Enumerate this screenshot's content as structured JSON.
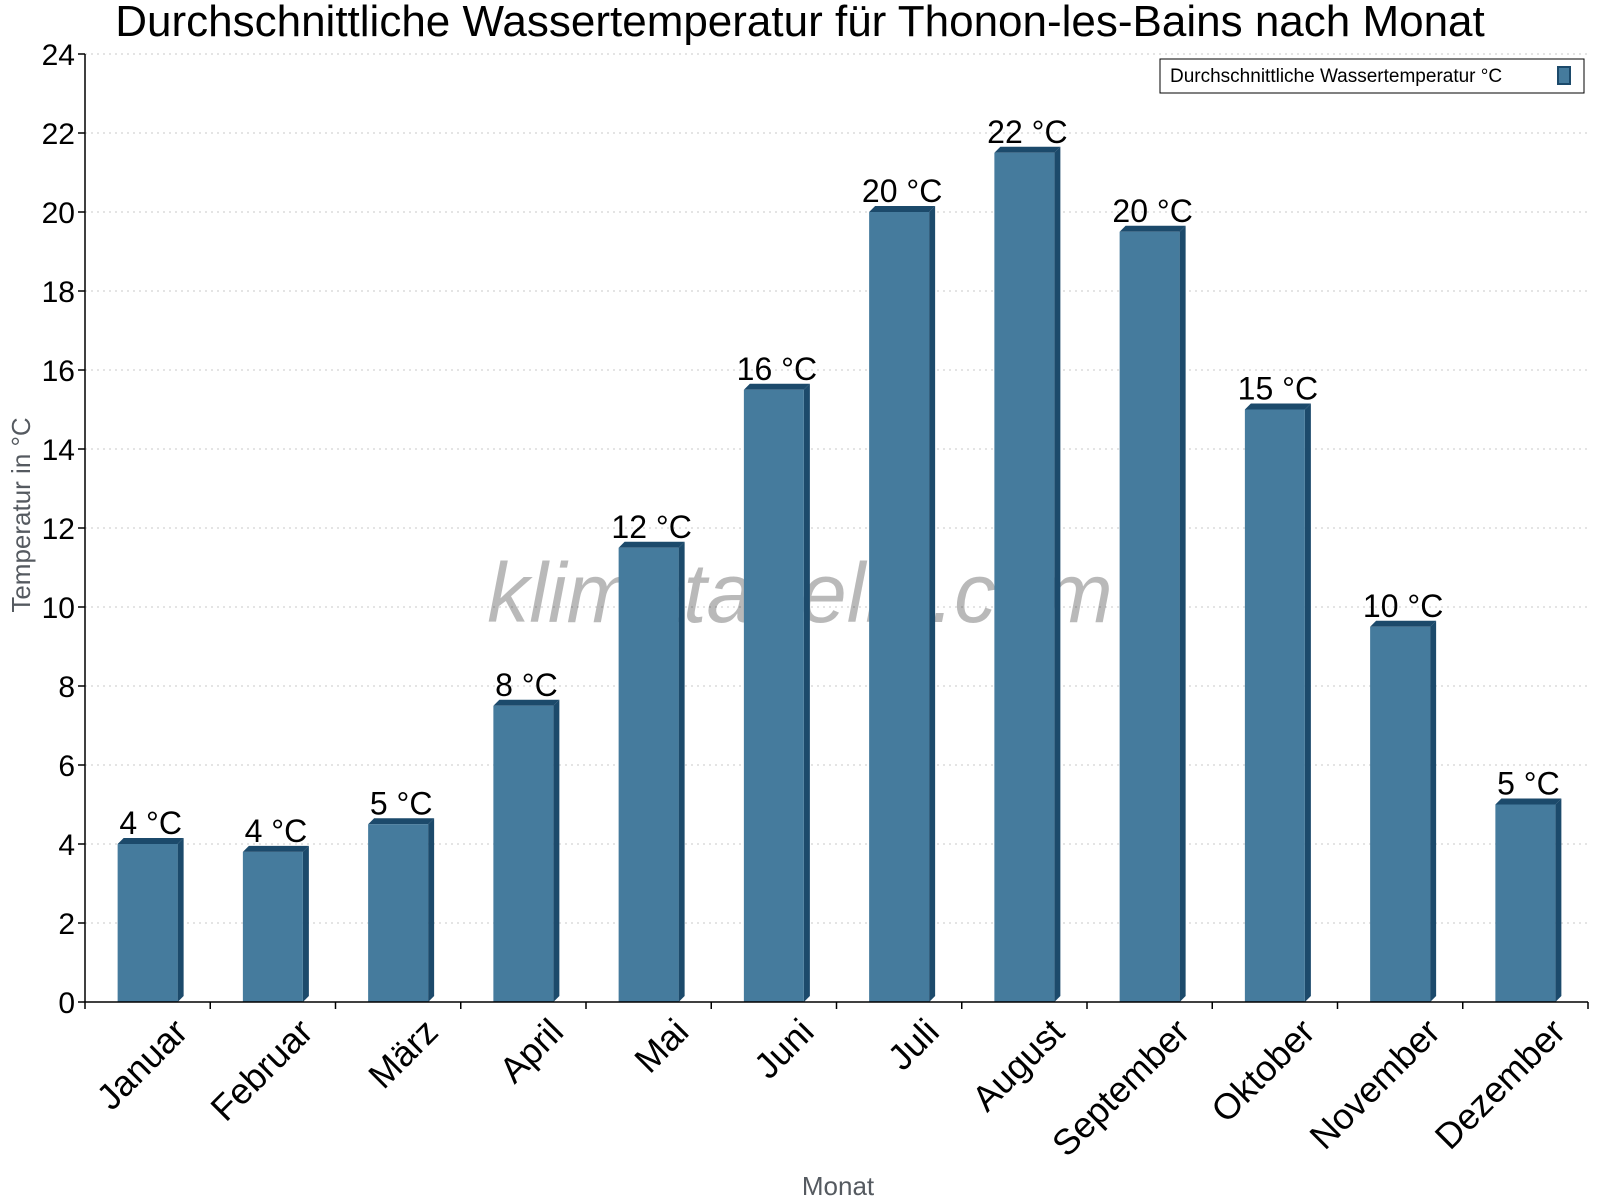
{
  "chart_data": {
    "type": "bar",
    "title": "Durchschnittliche Wassertemperatur für Thonon-les-Bains nach Monat",
    "xlabel": "Monat",
    "ylabel": "Temperatur in °C",
    "ylim": [
      0,
      24
    ],
    "yticks": [
      "0",
      "2",
      "4",
      "6",
      "8",
      "10",
      "12",
      "14",
      "16",
      "18",
      "20",
      "22",
      "24"
    ],
    "grid": true,
    "legend_position": "top-right",
    "categories": [
      "Januar",
      "Februar",
      "März",
      "April",
      "Mai",
      "Juni",
      "Juli",
      "August",
      "September",
      "Oktober",
      "November",
      "Dezember"
    ],
    "series": [
      {
        "name": "Durchschnittliche Wassertemperatur °C",
        "color": "#457b9d",
        "values": [
          4.0,
          3.8,
          4.5,
          7.5,
          11.5,
          15.5,
          20.0,
          21.5,
          19.5,
          15.0,
          9.5,
          5.0
        ],
        "labels": [
          "4 °C",
          "4 °C",
          "5 °C",
          "8 °C",
          "12 °C",
          "16 °C",
          "20 °C",
          "22 °C",
          "20 °C",
          "15 °C",
          "10 °C",
          "5 °C"
        ]
      }
    ]
  },
  "watermark": "klimatabelle.com",
  "colors": {
    "bar": "#457b9d",
    "bar_edge": "#1c4a6b",
    "grid": "#c8c8c8"
  }
}
